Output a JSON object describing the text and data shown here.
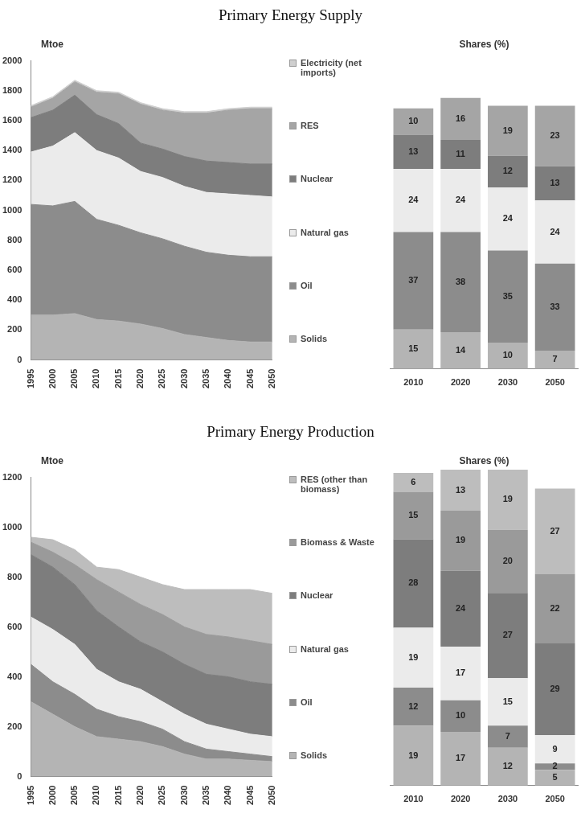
{
  "chart_data": [
    {
      "type": "area",
      "title": "Primary Energy Supply",
      "ylabel": "Mtoe",
      "x": [
        1995,
        2000,
        2005,
        2010,
        2015,
        2020,
        2025,
        2030,
        2035,
        2040,
        2045,
        2050
      ],
      "xlim": [
        1995,
        2050
      ],
      "xticks": [
        1995,
        2000,
        2005,
        2010,
        2015,
        2020,
        2025,
        2030,
        2035,
        2040,
        2045,
        2050
      ],
      "ylim": [
        0,
        2000
      ],
      "yticks": [
        0,
        200,
        400,
        600,
        800,
        1000,
        1200,
        1400,
        1600,
        1800,
        2000
      ],
      "stacked": true,
      "legend": "right",
      "series": [
        {
          "name": "Solids",
          "color": "#b4b4b4",
          "values": [
            300,
            300,
            310,
            270,
            260,
            240,
            210,
            170,
            150,
            130,
            120,
            120
          ]
        },
        {
          "name": "Oil",
          "color": "#8c8c8c",
          "values": [
            740,
            730,
            750,
            670,
            640,
            610,
            600,
            590,
            570,
            570,
            570,
            570
          ]
        },
        {
          "name": "Natural gas",
          "color": "#ebebeb",
          "values": [
            350,
            400,
            460,
            460,
            450,
            410,
            410,
            400,
            400,
            410,
            410,
            400
          ]
        },
        {
          "name": "Nuclear",
          "color": "#7d7d7d",
          "values": [
            230,
            240,
            250,
            240,
            230,
            190,
            190,
            200,
            210,
            210,
            210,
            220
          ]
        },
        {
          "name": "RES",
          "color": "#a5a5a5",
          "values": [
            70,
            80,
            90,
            150,
            200,
            260,
            260,
            290,
            320,
            350,
            370,
            370
          ]
        },
        {
          "name": "Electricity (net imports)",
          "color": "#cfcfcf",
          "values": [
            10,
            10,
            10,
            10,
            10,
            10,
            10,
            10,
            10,
            10,
            10,
            10
          ]
        }
      ]
    },
    {
      "type": "bar",
      "title": "Shares (%)",
      "categories": [
        "2010",
        "2020",
        "2030",
        "2050"
      ],
      "stacked": true,
      "data_labels": true,
      "tick_labels": "x",
      "series": [
        {
          "color": "#b4b4b4",
          "values": [
            15,
            14,
            10,
            7
          ]
        },
        {
          "color": "#8c8c8c",
          "values": [
            37,
            38,
            35,
            33
          ]
        },
        {
          "color": "#ebebeb",
          "values": [
            24,
            24,
            24,
            24
          ]
        },
        {
          "color": "#7d7d7d",
          "values": [
            13,
            11,
            12,
            13
          ]
        },
        {
          "color": "#a5a5a5",
          "values": [
            10,
            16,
            19,
            23
          ]
        }
      ]
    },
    {
      "type": "area",
      "title": "Primary Energy Production",
      "ylabel": "Mtoe",
      "x": [
        1995,
        2000,
        2005,
        2010,
        2015,
        2020,
        2025,
        2030,
        2035,
        2040,
        2045,
        2050
      ],
      "xlim": [
        1995,
        2050
      ],
      "xticks": [
        1995,
        2000,
        2005,
        2010,
        2015,
        2020,
        2025,
        2030,
        2035,
        2040,
        2045,
        2050
      ],
      "ylim": [
        0,
        1200
      ],
      "yticks": [
        0,
        200,
        400,
        600,
        800,
        1000,
        1200
      ],
      "stacked": true,
      "legend": "right",
      "series": [
        {
          "name": "Solids",
          "color": "#b4b4b4",
          "values": [
            300,
            250,
            200,
            160,
            150,
            140,
            120,
            90,
            70,
            70,
            65,
            60
          ]
        },
        {
          "name": "Oil",
          "color": "#8c8c8c",
          "values": [
            150,
            130,
            130,
            110,
            90,
            80,
            70,
            50,
            40,
            30,
            25,
            20
          ]
        },
        {
          "name": "Natural gas",
          "color": "#ebebeb",
          "values": [
            190,
            210,
            200,
            160,
            140,
            130,
            110,
            110,
            100,
            90,
            80,
            80
          ]
        },
        {
          "name": "Nuclear",
          "color": "#7d7d7d",
          "values": [
            250,
            250,
            240,
            235,
            220,
            190,
            200,
            200,
            200,
            210,
            210,
            210
          ]
        },
        {
          "name": "Biomass & Waste",
          "color": "#9a9a9a",
          "values": [
            50,
            60,
            80,
            125,
            140,
            150,
            150,
            150,
            160,
            160,
            165,
            160
          ]
        },
        {
          "name": "RES (other than biomass)",
          "color": "#bdbdbd",
          "values": [
            20,
            50,
            60,
            50,
            90,
            110,
            120,
            150,
            180,
            190,
            205,
            205
          ]
        }
      ]
    },
    {
      "type": "bar",
      "title": "Shares (%)",
      "categories": [
        "2010",
        "2020",
        "2030",
        "2050"
      ],
      "stacked": true,
      "data_labels": true,
      "tick_labels": "x",
      "series": [
        {
          "color": "#b4b4b4",
          "values": [
            19,
            17,
            12,
            5
          ]
        },
        {
          "color": "#8c8c8c",
          "values": [
            12,
            10,
            7,
            2
          ]
        },
        {
          "color": "#ebebeb",
          "values": [
            19,
            17,
            15,
            9
          ]
        },
        {
          "color": "#7d7d7d",
          "values": [
            28,
            24,
            27,
            29
          ]
        },
        {
          "color": "#9a9a9a",
          "values": [
            15,
            19,
            20,
            22
          ]
        },
        {
          "color": "#bdbdbd",
          "values": [
            6,
            13,
            19,
            27
          ]
        }
      ]
    }
  ]
}
